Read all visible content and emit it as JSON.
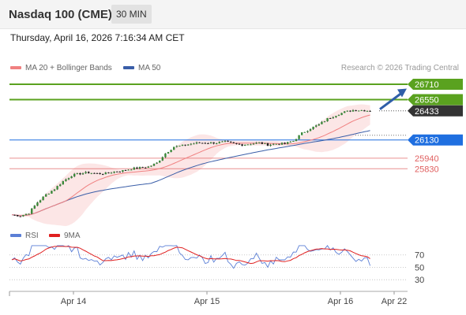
{
  "header": {
    "title": "Nasdaq 100 (CME)",
    "timeframe": "30 MIN"
  },
  "datetime": "Thursday, April 16, 2026 7:16:34 AM CET",
  "legend": {
    "items": [
      {
        "label": "MA 20 + Bollinger Bands",
        "color": "#f08080"
      },
      {
        "label": "MA 50",
        "color": "#3a5ea8"
      }
    ],
    "copyright": "Research © 2026 Trading Central"
  },
  "rsi_legend": {
    "items": [
      {
        "label": "RSI",
        "color": "#5b7fd6"
      },
      {
        "label": "9MA",
        "color": "#e02020"
      }
    ]
  },
  "colors": {
    "target": "#5aa21f",
    "pivot": "#1f6fe0",
    "support": "#e06060",
    "last": "#333333",
    "arrow": "#2f5ea8"
  },
  "chart_data": [
    {
      "type": "candlestick",
      "ylim": [
        25250,
        26800
      ],
      "x_labels": [
        "Apr 14",
        "Apr 15",
        "Apr 16",
        "Apr 22"
      ],
      "levels": [
        {
          "value": 26710,
          "label": "26710",
          "role": "target"
        },
        {
          "value": 26550,
          "label": "26550",
          "role": "target"
        },
        {
          "value": 26433,
          "label": "26433",
          "role": "last"
        },
        {
          "value": 26130,
          "label": "26130",
          "role": "pivot"
        },
        {
          "value": 25940,
          "label": "25940",
          "role": "support"
        },
        {
          "value": 25830,
          "label": "25830",
          "role": "support"
        }
      ],
      "price_path": [
        [
          0,
          25350
        ],
        [
          3,
          25340
        ],
        [
          6,
          25370
        ],
        [
          9,
          25480
        ],
        [
          12,
          25560
        ],
        [
          15,
          25620
        ],
        [
          18,
          25700
        ],
        [
          21,
          25760
        ],
        [
          24,
          25780
        ],
        [
          27,
          25790
        ],
        [
          30,
          25780
        ],
        [
          33,
          25780
        ],
        [
          36,
          25800
        ],
        [
          39,
          25810
        ],
        [
          42,
          25830
        ],
        [
          45,
          25840
        ],
        [
          48,
          25850
        ],
        [
          51,
          25890
        ],
        [
          54,
          25990
        ],
        [
          57,
          26060
        ],
        [
          60,
          26070
        ],
        [
          63,
          26090
        ],
        [
          66,
          26100
        ],
        [
          69,
          26100
        ],
        [
          72,
          26100
        ],
        [
          75,
          26110
        ],
        [
          78,
          26090
        ],
        [
          81,
          26080
        ],
        [
          84,
          26090
        ],
        [
          87,
          26100
        ],
        [
          90,
          26080
        ],
        [
          93,
          26090
        ],
        [
          96,
          26090
        ],
        [
          99,
          26120
        ],
        [
          102,
          26200
        ],
        [
          105,
          26250
        ],
        [
          108,
          26290
        ],
        [
          111,
          26350
        ],
        [
          114,
          26390
        ],
        [
          117,
          26420
        ],
        [
          120,
          26440
        ],
        [
          123,
          26440
        ],
        [
          126,
          26433
        ]
      ]
    },
    {
      "type": "line",
      "ylim": [
        15,
        90
      ],
      "ticks": [
        70,
        50,
        30
      ]
    }
  ]
}
